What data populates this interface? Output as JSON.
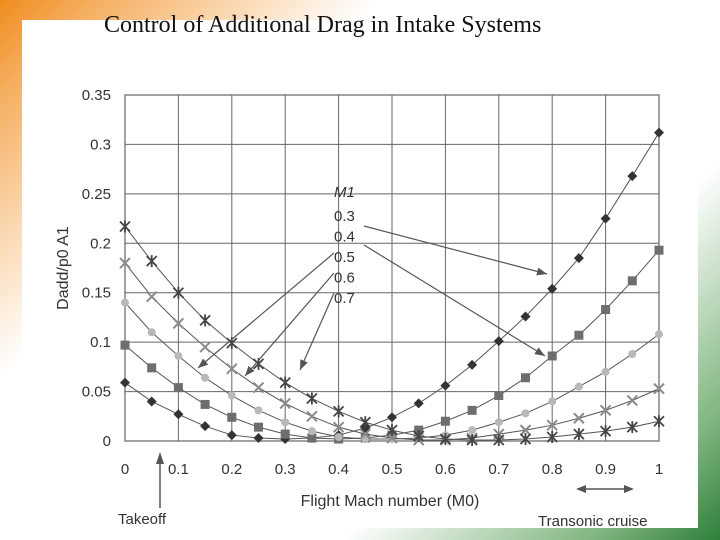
{
  "slide": {
    "title": "Control of Additional Drag in Intake Systems"
  },
  "chart_data": {
    "type": "line",
    "xlabel": "Flight Mach number (M0)",
    "ylabel": "Dadd/p0 A1",
    "xlim": [
      0,
      1
    ],
    "ylim": [
      0,
      0.35
    ],
    "x_ticks": [
      "0",
      "0.1",
      "0.2",
      "0.3",
      "0.4",
      "0.5",
      "0.6",
      "0.7",
      "0.8",
      "0.9",
      "1"
    ],
    "y_ticks": [
      "0",
      "0.05",
      "0.1",
      "0.15",
      "0.2",
      "0.25",
      "0.3",
      "0.35"
    ],
    "grid": true,
    "legend_title": "M1",
    "series": [
      {
        "name": "0.3",
        "marker": "diamond",
        "color": "#333333",
        "x": [
          0,
          0.05,
          0.1,
          0.15,
          0.2,
          0.25,
          0.3,
          0.35,
          0.4,
          0.45,
          0.5,
          0.55,
          0.6,
          0.65,
          0.7,
          0.75,
          0.8,
          0.85,
          0.9,
          0.95,
          1.0
        ],
        "y": [
          0.059,
          0.04,
          0.027,
          0.015,
          0.006,
          0.003,
          0.002,
          0.003,
          0.006,
          0.013,
          0.024,
          0.038,
          0.056,
          0.077,
          0.101,
          0.126,
          0.154,
          0.185,
          0.225,
          0.268,
          0.312
        ]
      },
      {
        "name": "0.4",
        "marker": "square",
        "color": "#6e6e6e",
        "x": [
          0,
          0.05,
          0.1,
          0.15,
          0.2,
          0.25,
          0.3,
          0.35,
          0.4,
          0.45,
          0.5,
          0.55,
          0.6,
          0.65,
          0.7,
          0.75,
          0.8,
          0.85,
          0.9,
          0.95,
          1.0
        ],
        "y": [
          0.097,
          0.074,
          0.054,
          0.037,
          0.024,
          0.014,
          0.007,
          0.003,
          0.002,
          0.003,
          0.006,
          0.011,
          0.02,
          0.031,
          0.046,
          0.064,
          0.086,
          0.107,
          0.133,
          0.162,
          0.193
        ]
      },
      {
        "name": "0.5",
        "marker": "circle",
        "color": "#b8b8b8",
        "x": [
          0,
          0.05,
          0.1,
          0.15,
          0.2,
          0.25,
          0.3,
          0.35,
          0.4,
          0.45,
          0.5,
          0.55,
          0.6,
          0.65,
          0.7,
          0.75,
          0.8,
          0.85,
          0.9,
          0.95,
          1.0
        ],
        "y": [
          0.14,
          0.11,
          0.086,
          0.064,
          0.046,
          0.031,
          0.019,
          0.01,
          0.004,
          0.002,
          0.002,
          0.003,
          0.006,
          0.011,
          0.019,
          0.028,
          0.04,
          0.055,
          0.07,
          0.088,
          0.108
        ]
      },
      {
        "name": "0.6",
        "marker": "x",
        "color": "#8a8a8a",
        "x": [
          0,
          0.05,
          0.1,
          0.15,
          0.2,
          0.25,
          0.3,
          0.35,
          0.4,
          0.45,
          0.5,
          0.55,
          0.6,
          0.65,
          0.7,
          0.75,
          0.8,
          0.85,
          0.9,
          0.95,
          1.0
        ],
        "y": [
          0.18,
          0.146,
          0.119,
          0.095,
          0.073,
          0.054,
          0.038,
          0.025,
          0.014,
          0.007,
          0.003,
          0.001,
          0.001,
          0.003,
          0.007,
          0.011,
          0.016,
          0.023,
          0.031,
          0.041,
          0.053
        ]
      },
      {
        "name": "0.7",
        "marker": "star",
        "color": "#444444",
        "x": [
          0,
          0.05,
          0.1,
          0.15,
          0.2,
          0.25,
          0.3,
          0.35,
          0.4,
          0.45,
          0.5,
          0.55,
          0.6,
          0.65,
          0.7,
          0.75,
          0.8,
          0.85,
          0.9,
          0.95,
          1.0
        ],
        "y": [
          0.217,
          0.182,
          0.15,
          0.122,
          0.099,
          0.078,
          0.059,
          0.043,
          0.03,
          0.019,
          0.011,
          0.005,
          0.002,
          0.001,
          0.001,
          0.002,
          0.004,
          0.007,
          0.01,
          0.014,
          0.02
        ]
      }
    ],
    "annotations": {
      "takeoff": "Takeoff",
      "transonic": "Transonic cruise"
    }
  }
}
